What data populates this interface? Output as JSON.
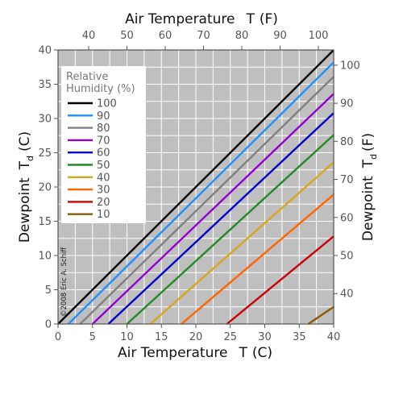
{
  "chart_data": {
    "type": "line",
    "axes": {
      "bottom": {
        "title": "Air Temperature",
        "var": "T",
        "unit": "(C)",
        "range": [
          0,
          40
        ],
        "ticks": [
          0,
          5,
          10,
          15,
          20,
          25,
          30,
          35,
          40
        ]
      },
      "left": {
        "title": "Dewpoint",
        "var": "T",
        "sub": "d",
        "unit": "(C)",
        "range": [
          0,
          40
        ],
        "ticks": [
          0,
          5,
          10,
          15,
          20,
          25,
          30,
          35,
          40
        ]
      },
      "top": {
        "title": "Air Temperature",
        "var": "T",
        "unit": "(F)",
        "ticks": [
          40,
          50,
          60,
          70,
          80,
          90,
          100
        ]
      },
      "right": {
        "title": "Dewpoint",
        "var": "T",
        "sub": "d",
        "unit": "(F)",
        "ticks": [
          40,
          50,
          60,
          70,
          80,
          90,
          100
        ]
      }
    },
    "grid": true,
    "legend": {
      "position": "top-left",
      "title_line1": "Relative",
      "title_line2": "Humidity (%)"
    },
    "series": [
      {
        "name": "100",
        "color": "#000000",
        "x": [
          0,
          40
        ],
        "y": [
          0,
          40
        ]
      },
      {
        "name": "90",
        "color": "#1e90ff",
        "x": [
          1.5,
          40
        ],
        "y": [
          0,
          38.2
        ]
      },
      {
        "name": "80",
        "color": "#808080",
        "x": [
          3.2,
          40
        ],
        "y": [
          0,
          36.1
        ]
      },
      {
        "name": "70",
        "color": "#9400d3",
        "x": [
          5.0,
          40
        ],
        "y": [
          0,
          33.6
        ]
      },
      {
        "name": "60",
        "color": "#0000cd",
        "x": [
          7.3,
          40
        ],
        "y": [
          0,
          30.8
        ]
      },
      {
        "name": "50",
        "color": "#228b22",
        "x": [
          10.0,
          40
        ],
        "y": [
          0,
          27.6
        ]
      },
      {
        "name": "40",
        "color": "#daa520",
        "x": [
          13.4,
          40
        ],
        "y": [
          0,
          23.6
        ]
      },
      {
        "name": "30",
        "color": "#ff6600",
        "x": [
          17.9,
          40
        ],
        "y": [
          0,
          18.9
        ]
      },
      {
        "name": "20",
        "color": "#cc0000",
        "x": [
          24.5,
          40
        ],
        "y": [
          0,
          12.8
        ]
      },
      {
        "name": "10",
        "color": "#8b5a00",
        "x": [
          36.3,
          40
        ],
        "y": [
          0,
          2.5
        ]
      }
    ],
    "credit": "©2008 Eric A. Schiff"
  }
}
